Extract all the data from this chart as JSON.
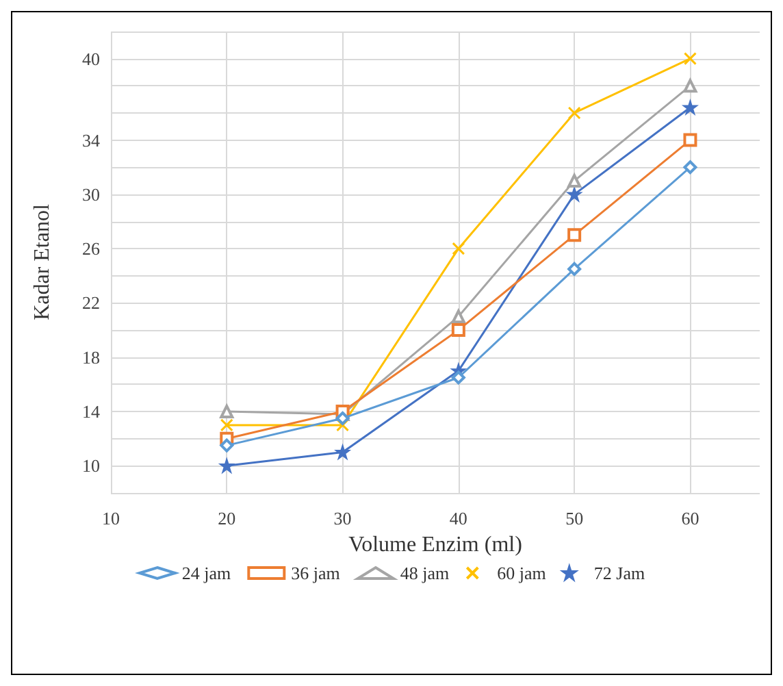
{
  "chart_data": {
    "type": "line",
    "xlabel": "Volume Enzim (ml)",
    "ylabel": "Kadar Etanol",
    "xlim": [
      10,
      66
    ],
    "xticks": [
      10,
      20,
      30,
      40,
      50,
      60
    ],
    "ylim": [
      8,
      42
    ],
    "yticks": [
      {
        "value": 8,
        "label": null
      },
      10,
      {
        "value": 12,
        "label": null
      },
      14,
      {
        "value": 16,
        "label": null
      },
      18,
      {
        "value": 20,
        "label": null
      },
      22,
      {
        "value": 24,
        "label": null
      },
      26,
      {
        "value": 28,
        "label": null
      },
      30,
      {
        "value": 32,
        "label": null
      },
      34,
      {
        "value": 36,
        "label": null
      },
      {
        "value": 38,
        "label": null
      },
      40,
      {
        "value": 42,
        "label": null
      }
    ],
    "grid": true,
    "legend": "bottom",
    "x": [
      20,
      30,
      40,
      50,
      60
    ],
    "series": [
      {
        "name": "24 jam",
        "color": "#5b9bd5",
        "marker": "diamond",
        "values": [
          11.5,
          13.5,
          16.5,
          24.5,
          32
        ]
      },
      {
        "name": "36 jam",
        "color": "#ed7d31",
        "marker": "square",
        "values": [
          12,
          14,
          20,
          27,
          34
        ]
      },
      {
        "name": "48 jam",
        "color": "#a5a5a5",
        "marker": "triangle",
        "values": [
          14,
          13.8,
          21,
          31,
          38
        ]
      },
      {
        "name": "60 jam",
        "color": "#ffc000",
        "marker": "cross",
        "values": [
          13,
          13,
          26,
          36,
          40
        ]
      },
      {
        "name": "72 Jam",
        "color": "#4472c4",
        "marker": "star",
        "values": [
          10,
          11,
          17,
          30,
          36.4
        ]
      }
    ]
  }
}
